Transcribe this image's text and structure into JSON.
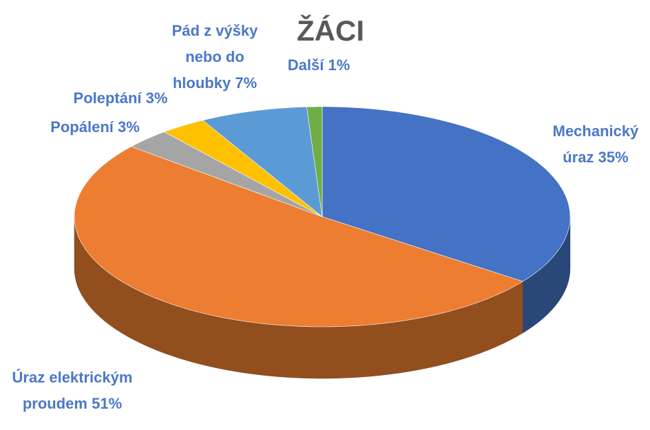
{
  "chart_data": {
    "type": "pie",
    "title": "ŽÁCI",
    "categories": [
      "Mechanický úraz",
      "Úraz elektrickým proudem",
      "Popálení",
      "Poleptání",
      "Pád z výšky nebo do hloubky",
      "Další"
    ],
    "values": [
      35,
      51,
      3,
      3,
      7,
      1
    ],
    "value_labels": [
      "35%",
      "51%",
      "3%",
      "3%",
      "7%",
      "1%"
    ],
    "colors": [
      "#4472c4",
      "#ed7d31",
      "#a5a5a5",
      "#ffc000",
      "#5b9bd5",
      "#70ad47"
    ]
  }
}
